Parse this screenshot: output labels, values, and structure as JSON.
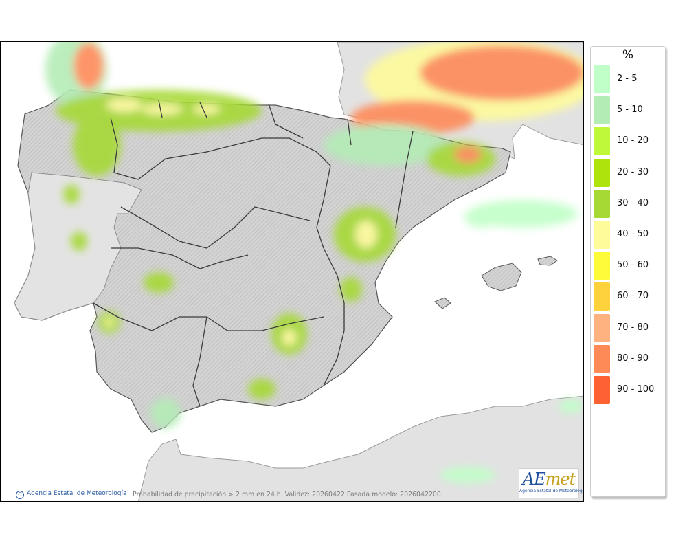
{
  "map": {
    "credit": "Agencia Estatal de Meteorología",
    "credit_symbol": "C",
    "caption": "Probabilidad de precipitación > 2 mm en 24 h. Validez: 20260422 Pasada modelo: 2026042200",
    "logo_prefix": "AE",
    "logo_suffix": "met",
    "logo_subtitle": "Agencia Estatal de Meteorología"
  },
  "legend": {
    "title": "%",
    "items": [
      {
        "label": "2 - 5",
        "color": "#c1ffc8"
      },
      {
        "label": "5 - 10",
        "color": "#b4ecb6"
      },
      {
        "label": "10 - 20",
        "color": "#bff739"
      },
      {
        "label": "20 - 30",
        "color": "#aee30b"
      },
      {
        "label": "30 - 40",
        "color": "#a6d934"
      },
      {
        "label": "40 - 50",
        "color": "#fefb9b"
      },
      {
        "label": "50 - 60",
        "color": "#fefb3b"
      },
      {
        "label": "60 - 70",
        "color": "#fed23c"
      },
      {
        "label": "70 - 80",
        "color": "#feb27f"
      },
      {
        "label": "80 - 90",
        "color": "#fe8a58"
      },
      {
        "label": "90 - 100",
        "color": "#fe6232"
      }
    ]
  }
}
